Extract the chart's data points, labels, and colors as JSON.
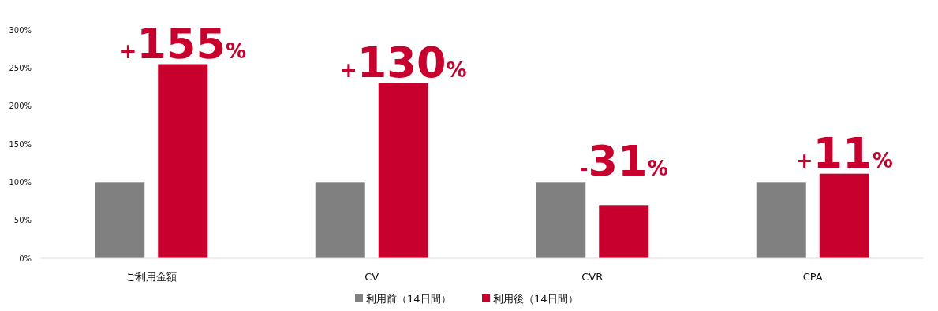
{
  "chart_data": {
    "type": "bar",
    "categories": [
      "ご利用金額",
      "CV",
      "CVR",
      "CPA"
    ],
    "series": [
      {
        "name": "利用前（14日間）",
        "color": "#808080",
        "values": [
          100,
          100,
          100,
          100
        ]
      },
      {
        "name": "利用後（14日間）",
        "color": "#c8002d",
        "values": [
          255,
          230,
          69,
          111
        ]
      }
    ],
    "annotations": [
      "+155%",
      "+130%",
      "-31%",
      "+11%"
    ],
    "ylim": [
      0,
      300
    ],
    "yticks": [
      {
        "value": 0,
        "label": "0%"
      },
      {
        "value": 50,
        "label": "50%"
      },
      {
        "value": 100,
        "label": "100%"
      },
      {
        "value": 150,
        "label": "150%"
      },
      {
        "value": 200,
        "label": "200%"
      },
      {
        "value": 250,
        "label": "250%"
      },
      {
        "value": 300,
        "label": "300%"
      }
    ],
    "grid": false,
    "legend": "bottom"
  }
}
